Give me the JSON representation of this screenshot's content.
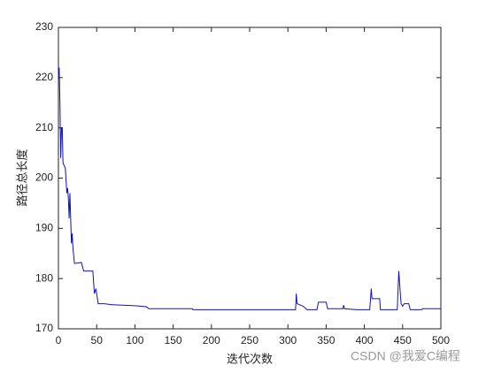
{
  "chart_data": {
    "type": "line",
    "xlabel": "迭代次数",
    "ylabel": "路径总长度",
    "watermark": "CSDN @我爱C编程",
    "xlim": [
      0,
      500
    ],
    "ylim": [
      170,
      230
    ],
    "xticks": [
      0,
      50,
      100,
      150,
      200,
      250,
      300,
      350,
      400,
      450,
      500
    ],
    "yticks": [
      170,
      180,
      190,
      200,
      210,
      220,
      230
    ],
    "series": [
      {
        "name": "路径总长度",
        "color": "#1010c0",
        "x": [
          0,
          1,
          2,
          3,
          4,
          5,
          6,
          9,
          11,
          12,
          13,
          14,
          15,
          17,
          18,
          19,
          21,
          30,
          33,
          45,
          47,
          49,
          51,
          52,
          60,
          70,
          100,
          115,
          118,
          175,
          176,
          310,
          311,
          312,
          320,
          325,
          338,
          340,
          350,
          352,
          372,
          373,
          374,
          390,
          407,
          409,
          410,
          420,
          421,
          443,
          445,
          447,
          448,
          450,
          452,
          458,
          460,
          475,
          476,
          500
        ],
        "values": [
          221,
          222,
          215,
          204,
          210,
          210,
          203,
          202,
          197,
          198,
          196,
          192,
          197,
          187,
          189,
          186,
          183,
          183.2,
          181.5,
          181.5,
          177,
          178,
          176,
          175,
          175,
          174.8,
          174.6,
          174.4,
          174,
          174,
          173.8,
          173.8,
          177,
          175,
          174.5,
          173.8,
          173.8,
          175.3,
          175.3,
          174,
          174,
          174.7,
          174,
          173.8,
          173.8,
          178,
          176,
          176,
          173.8,
          173.8,
          181.5,
          177,
          175,
          174.5,
          175,
          175,
          173.8,
          173.8,
          174,
          174
        ]
      }
    ]
  }
}
